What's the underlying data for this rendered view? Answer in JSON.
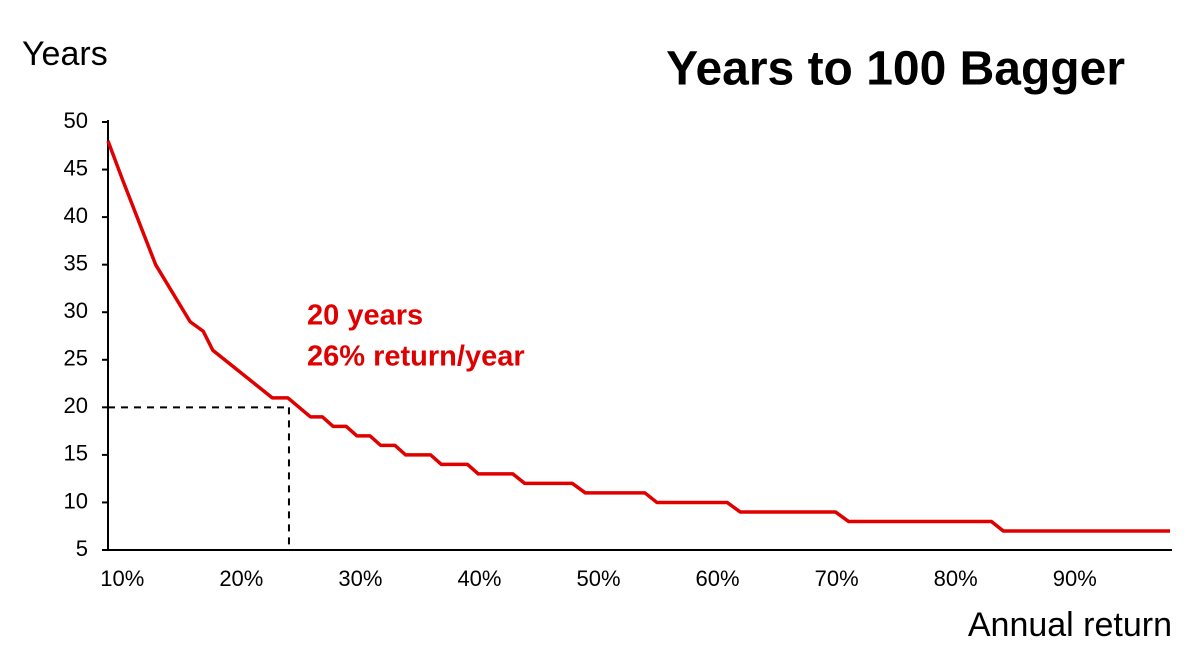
{
  "chart_data": {
    "type": "line",
    "title": "Years to 100 Bagger",
    "y_label": "Years",
    "x_label": "Annual return",
    "annotation": [
      "20 years",
      "26% return/year"
    ],
    "reference": {
      "x": 24,
      "y": 20
    },
    "series": [
      {
        "name": "Years",
        "color": "#e00000",
        "x": [
          8.8,
          10,
          12.8,
          15.7,
          16.8,
          17.6,
          22.6,
          23.9,
          25.8,
          26.8,
          27.7,
          28.8,
          29.7,
          30.8,
          31.7,
          32.9,
          33.8,
          35.9,
          36.8,
          39,
          39.9,
          42.8,
          43.8,
          47.8,
          48.9,
          53.9,
          54.9,
          60.8,
          61.9,
          69.9,
          71,
          83,
          84,
          98
        ],
        "values": [
          48,
          44,
          35,
          29,
          28,
          26,
          21,
          21,
          19,
          19,
          18,
          18,
          17,
          17,
          16,
          16,
          15,
          15,
          14,
          14,
          13,
          13,
          12,
          12,
          11,
          11,
          10,
          10,
          9,
          9,
          8,
          8,
          7,
          7
        ]
      }
    ],
    "xlim": [
      8.8,
      98
    ],
    "ylim": [
      5,
      50
    ],
    "xticks": [
      {
        "value": 10,
        "label": "10%"
      },
      {
        "value": 20,
        "label": "20%"
      },
      {
        "value": 30,
        "label": "30%"
      },
      {
        "value": 40,
        "label": "40%"
      },
      {
        "value": 50,
        "label": "50%"
      },
      {
        "value": 60,
        "label": "60%"
      },
      {
        "value": 70,
        "label": "70%"
      },
      {
        "value": 80,
        "label": "80%"
      },
      {
        "value": 90,
        "label": "90%"
      }
    ],
    "yticks": [
      5,
      10,
      15,
      20,
      25,
      30,
      35,
      40,
      45,
      50
    ],
    "grid": false
  }
}
